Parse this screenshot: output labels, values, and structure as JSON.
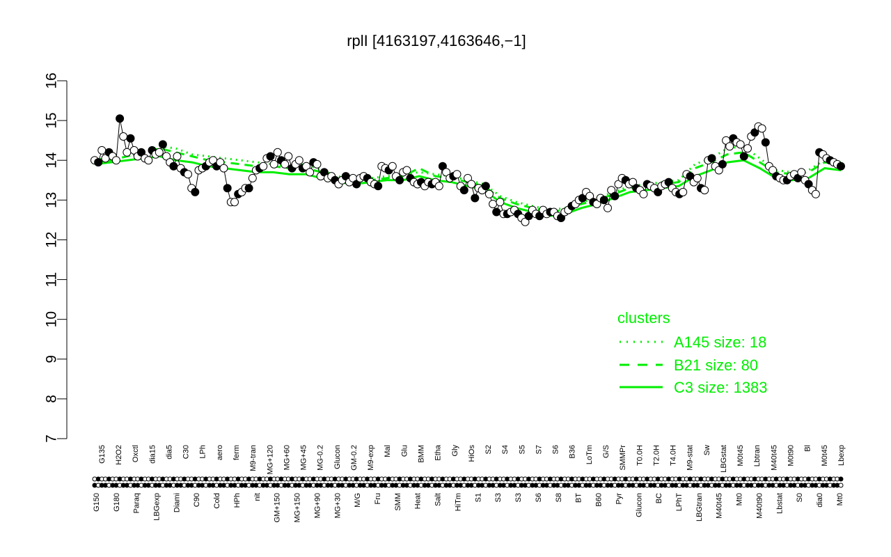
{
  "chart_data": {
    "type": "line",
    "title": "rplI [4163197,4163646,−1]",
    "xlabel": "",
    "ylabel": "",
    "ylim": [
      7,
      16
    ],
    "yticks": [
      7,
      8,
      9,
      10,
      11,
      12,
      13,
      14,
      15,
      16
    ],
    "grid": false,
    "colors": {
      "cluster_lines": "#00ee00",
      "points": "#000000",
      "open_points": "#ffffff",
      "legend_text": "#00ee00"
    },
    "legend": {
      "title": "clusters",
      "placement": "right",
      "entries": [
        {
          "label": "A145 size: 18",
          "style": "dotted"
        },
        {
          "label": "B21 size: 80",
          "style": "dashed"
        },
        {
          "label": "C3 size: 1383",
          "style": "solid"
        }
      ]
    },
    "x_labels_upper": [
      "G135",
      "H2O2",
      "Oxctl",
      "dia15",
      "dia5",
      "C30",
      "LPh",
      "aero",
      "ferm",
      "M9-tran",
      "MG+120",
      "MG+60",
      "MG+45",
      "MG-0.2",
      "Glucon",
      "GM-0.2",
      "M9-exp",
      "Mal",
      "Glu",
      "BMM",
      "Etha",
      "Gly",
      "HiOs",
      "S2",
      "S4",
      "S5",
      "S7",
      "S6",
      "B36",
      "LoTm",
      "G/S",
      "SMMPr",
      "T0.0H",
      "T2.0H",
      "T4.0H",
      "M9-stat",
      "Sw",
      "LBGstat",
      "M0t45",
      "Lbtran",
      "M40t45",
      "M0t90",
      "Bl",
      "M0t45",
      "Lbexp"
    ],
    "x_labels_lower": [
      "G150",
      "G180",
      "Paraq",
      "LBGexp",
      "Diami",
      "C90",
      "Cold",
      "HPh",
      "nit",
      "GM+150",
      "MG+150",
      "MG+90",
      "MG+30",
      "M/G",
      "Fru",
      "SMM",
      "Heat",
      "Salt",
      "HiTm",
      "S1",
      "S3",
      "S3",
      "S6",
      "S8",
      "BT",
      "B60",
      "Pyr",
      "Glucon",
      "BC",
      "LPhT",
      "LBGtran",
      "M40t45",
      "Mt0",
      "M40t90",
      "Lbstat",
      "S0",
      "dia0",
      "Mt0"
    ],
    "series": [
      {
        "values": [
          14.0,
          13.95,
          14.25,
          14.05,
          14.2,
          14.1,
          14.0,
          15.05,
          14.6,
          14.2,
          14.55,
          14.25,
          14.1,
          14.2,
          14.05,
          14.0,
          14.25,
          14.15,
          14.2,
          14.4,
          14.1,
          13.95,
          13.85,
          14.1,
          13.8,
          13.7,
          13.65,
          13.3,
          13.2,
          13.75,
          13.8,
          13.85,
          13.95,
          14.0,
          13.85,
          13.95,
          13.8,
          13.3,
          12.95,
          12.95,
          13.15,
          13.2,
          13.3,
          13.3,
          13.55,
          13.75,
          13.8,
          13.85,
          14.05,
          14.1,
          13.9,
          14.2,
          14.0,
          13.9,
          14.1,
          13.8,
          13.9,
          14.0,
          13.8,
          13.85,
          13.7,
          13.95,
          13.9,
          13.6,
          13.7,
          13.55,
          13.6,
          13.5,
          13.4,
          13.5,
          13.6,
          13.45,
          13.55,
          13.4,
          13.55,
          13.6,
          13.55,
          13.45,
          13.4,
          13.35,
          13.85,
          13.8,
          13.75,
          13.85,
          13.6,
          13.5,
          13.7,
          13.75,
          13.55,
          13.45,
          13.4,
          13.45,
          13.35,
          13.45,
          13.4,
          13.45,
          13.35,
          13.85,
          13.7,
          13.55,
          13.6,
          13.65,
          13.35,
          13.25,
          13.55,
          13.4,
          13.05,
          13.3,
          13.25,
          13.35,
          13.15,
          12.9,
          12.7,
          12.95,
          12.65,
          12.65,
          12.7,
          12.75,
          12.65,
          12.55,
          12.45,
          12.6,
          12.75,
          12.65,
          12.6,
          12.75,
          12.65,
          12.7,
          12.7,
          12.6,
          12.55,
          12.7,
          12.75,
          12.85,
          12.9,
          13.0,
          13.05,
          13.2,
          13.1,
          12.95,
          12.9,
          13.05,
          13.0,
          12.8,
          13.25,
          13.1,
          13.4,
          13.55,
          13.5,
          13.4,
          13.45,
          13.3,
          13.25,
          13.15,
          13.4,
          13.35,
          13.3,
          13.2,
          13.35,
          13.4,
          13.45,
          13.3,
          13.2,
          13.15,
          13.2,
          13.65,
          13.6,
          13.45,
          13.55,
          13.3,
          13.25,
          14.0,
          14.05,
          13.85,
          13.75,
          13.9,
          14.5,
          14.35,
          14.55,
          14.45,
          14.4,
          14.1,
          14.3,
          14.6,
          14.7,
          14.85,
          14.8,
          14.45,
          13.85,
          13.75,
          13.6,
          13.55,
          13.5,
          13.5,
          13.6,
          13.65,
          13.55,
          13.7,
          13.5,
          13.4,
          13.25,
          13.15,
          14.2,
          14.15,
          14.05,
          14.0,
          13.95,
          13.9,
          13.85
        ]
      }
    ],
    "lines": [
      {
        "name": "A145",
        "style": "dotted",
        "values": [
          14.05,
          14.0,
          14.1,
          14.2,
          14.35,
          14.3,
          14.15,
          14.1,
          14.05,
          14.0,
          13.95,
          13.9,
          13.85,
          13.9,
          13.75,
          13.6,
          13.5,
          13.55,
          13.6,
          13.65,
          13.7,
          13.65,
          13.6,
          13.5,
          13.4,
          13.1,
          12.95,
          12.85,
          12.75,
          12.8,
          12.95,
          13.05,
          13.2,
          13.35,
          13.4,
          13.45,
          13.5,
          13.9,
          14.05,
          14.3,
          14.35,
          14.05,
          13.75,
          13.7,
          13.75,
          14.0,
          13.95
        ]
      },
      {
        "name": "B21",
        "style": "dashed",
        "values": [
          13.95,
          14.0,
          14.1,
          14.2,
          14.3,
          14.2,
          14.1,
          14.0,
          13.95,
          13.9,
          13.85,
          13.85,
          13.8,
          13.8,
          13.7,
          13.55,
          13.45,
          13.5,
          13.55,
          13.6,
          13.8,
          13.6,
          13.55,
          13.45,
          13.35,
          13.05,
          12.9,
          12.8,
          12.7,
          12.75,
          12.9,
          13.0,
          13.15,
          13.3,
          13.35,
          13.4,
          13.45,
          13.8,
          13.95,
          14.15,
          14.2,
          13.95,
          13.7,
          13.65,
          13.7,
          13.95,
          13.9
        ]
      },
      {
        "name": "C3",
        "style": "solid",
        "values": [
          13.9,
          13.95,
          14.0,
          14.05,
          14.1,
          14.0,
          13.95,
          13.85,
          13.8,
          13.75,
          13.7,
          13.7,
          13.65,
          13.65,
          13.55,
          13.45,
          13.4,
          13.45,
          13.5,
          13.5,
          13.6,
          13.5,
          13.45,
          13.35,
          13.25,
          12.95,
          12.8,
          12.7,
          12.6,
          12.65,
          12.8,
          12.9,
          13.05,
          13.2,
          13.25,
          13.3,
          13.35,
          13.6,
          13.75,
          13.95,
          14.0,
          13.8,
          13.55,
          13.5,
          13.55,
          13.8,
          13.75
        ]
      }
    ]
  }
}
